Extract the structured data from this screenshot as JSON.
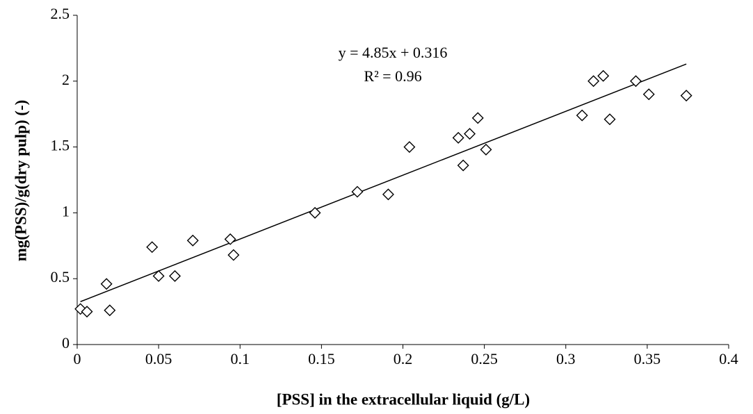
{
  "chart_data": {
    "type": "scatter",
    "x_label": "[PSS] in the extracellular liquid (g/L)",
    "y_label": "mg(PSS)/g(dry pulp) (-)",
    "x": [
      0.002,
      0.006,
      0.018,
      0.02,
      0.046,
      0.05,
      0.06,
      0.071,
      0.094,
      0.096,
      0.146,
      0.172,
      0.191,
      0.204,
      0.234,
      0.237,
      0.241,
      0.246,
      0.251,
      0.31,
      0.317,
      0.323,
      0.327,
      0.343,
      0.351,
      0.374
    ],
    "values": [
      0.27,
      0.25,
      0.46,
      0.26,
      0.74,
      0.52,
      0.52,
      0.79,
      0.8,
      0.68,
      1.0,
      1.16,
      1.14,
      1.5,
      1.57,
      1.36,
      1.6,
      1.72,
      1.48,
      1.74,
      2.0,
      2.04,
      1.71,
      2.0,
      1.9,
      1.89
    ],
    "marker_color": "#000000",
    "trendline": {
      "slope": 4.85,
      "intercept": 0.316,
      "label": "y = 4.85x + 0.316",
      "r2_label": "R² = 0.96",
      "color": "#000000"
    },
    "xlim": [
      0,
      0.4
    ],
    "xticks": [
      0,
      0.05,
      0.1,
      0.15,
      0.2,
      0.25,
      0.3,
      0.35,
      0.4
    ],
    "ylim": [
      0,
      2.5
    ],
    "yticks": [
      0,
      0.5,
      1,
      1.5,
      2,
      2.5
    ],
    "grid": false
  }
}
